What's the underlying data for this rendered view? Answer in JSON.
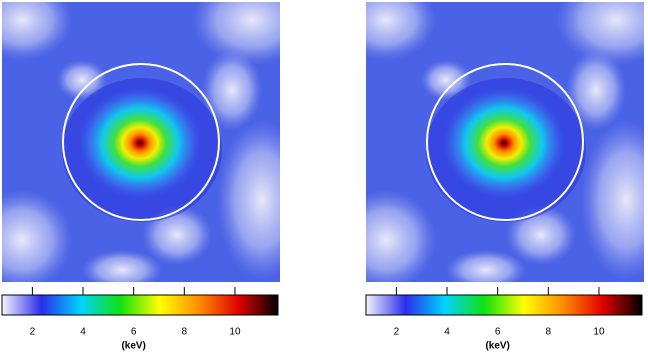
{
  "panels": [
    {
      "colorbar": {
        "label": "(keV)",
        "range": [
          0.8,
          11.7
        ],
        "ticks": [
          2,
          4,
          6,
          8,
          10
        ],
        "colormap": [
          "#f4f2ff",
          "#2a2ee8",
          "#00d4ff",
          "#10e010",
          "#ffff00",
          "#ff8c00",
          "#e00000",
          "#000000"
        ]
      }
    },
    {
      "colorbar": {
        "label": "(keV)",
        "range": [
          0.8,
          11.7
        ],
        "ticks": [
          2,
          4,
          6,
          8,
          10
        ],
        "colormap": [
          "#f4f2ff",
          "#2a2ee8",
          "#00d4ff",
          "#10e010",
          "#ffff00",
          "#ff8c00",
          "#e00000",
          "#000000"
        ]
      }
    }
  ]
}
